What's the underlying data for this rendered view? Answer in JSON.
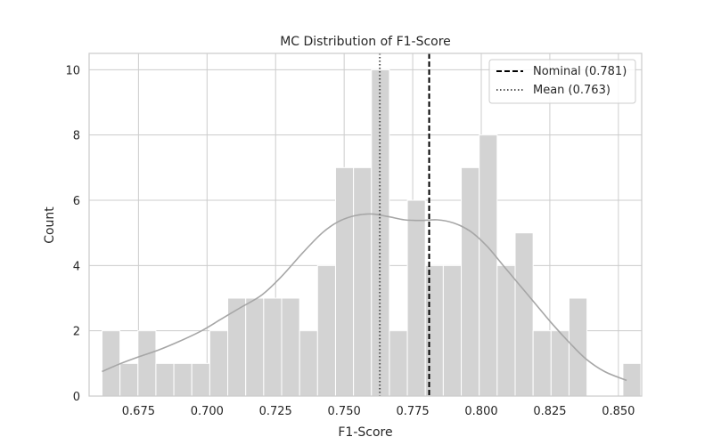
{
  "chart_data": {
    "type": "bar",
    "title": "MC Distribution of F1-Score",
    "xlabel": "F1-Score",
    "ylabel": "Count",
    "xlim": [
      0.657,
      0.8585
    ],
    "ylim": [
      0,
      10.5
    ],
    "xticks": [
      0.675,
      0.7,
      0.725,
      0.75,
      0.775,
      0.8,
      0.825,
      0.85
    ],
    "xtick_labels": [
      "0.675",
      "0.700",
      "0.725",
      "0.750",
      "0.775",
      "0.800",
      "0.825",
      "0.850"
    ],
    "yticks": [
      0,
      2,
      4,
      6,
      8,
      10
    ],
    "ytick_labels": [
      "0",
      "2",
      "4",
      "6",
      "8",
      "10"
    ],
    "grid": true,
    "histogram": {
      "bin_start": 0.6617,
      "bin_width": 0.00655,
      "counts": [
        2,
        1,
        2,
        1,
        1,
        1,
        2,
        3,
        3,
        3,
        3,
        2,
        4,
        7,
        7,
        10,
        2,
        6,
        4,
        4,
        7,
        8,
        4,
        5,
        2,
        2,
        3,
        0,
        0,
        1
      ],
      "color": "#d3d3d3"
    },
    "kde": {
      "color": "#a6a6a6",
      "x": [
        0.6617,
        0.668,
        0.675,
        0.682,
        0.69,
        0.698,
        0.705,
        0.712,
        0.72,
        0.727,
        0.735,
        0.742,
        0.748,
        0.754,
        0.76,
        0.766,
        0.772,
        0.778,
        0.784,
        0.79,
        0.796,
        0.802,
        0.808,
        0.814,
        0.82,
        0.826,
        0.832,
        0.838,
        0.845,
        0.853
      ],
      "y": [
        0.75,
        0.98,
        1.2,
        1.4,
        1.68,
        2.0,
        2.35,
        2.7,
        3.1,
        3.65,
        4.4,
        5.0,
        5.35,
        5.53,
        5.58,
        5.5,
        5.4,
        5.38,
        5.4,
        5.3,
        5.05,
        4.6,
        4.0,
        3.4,
        2.8,
        2.2,
        1.65,
        1.15,
        0.75,
        0.48
      ]
    },
    "reference_lines": [
      {
        "name": "Nominal (0.781)",
        "value": 0.781,
        "style": "dashed",
        "color": "#000000"
      },
      {
        "name": "Mean (0.763)",
        "value": 0.763,
        "style": "dotted",
        "color": "#555555"
      }
    ],
    "legend": {
      "placement": "top-right",
      "entries": [
        "Nominal (0.781)",
        "Mean (0.763)"
      ]
    }
  }
}
